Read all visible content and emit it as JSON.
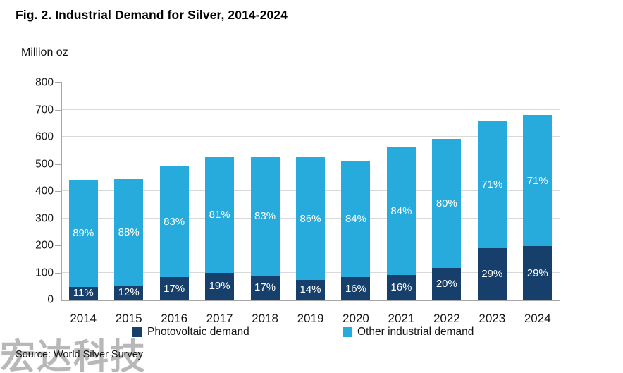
{
  "title": "Fig. 2. Industrial Demand for Silver, 2014-2024",
  "y_axis_label": "Million oz",
  "source": "Source: World Silver Survey",
  "watermark": "宏达科技",
  "colors": {
    "photovoltaic": "#16406B",
    "other_industrial": "#27ABDC",
    "gridline": "#d9d9d9",
    "axis": "#a6a6a6",
    "label_text": "#ffffff"
  },
  "legend": [
    {
      "label": "Photovoltaic demand",
      "color": "#16406B"
    },
    {
      "label": "Other industrial demand",
      "color": "#27ABDC"
    }
  ],
  "chart_data": {
    "type": "bar",
    "subtype": "stacked",
    "title": "Fig. 2. Industrial Demand for Silver, 2014-2024",
    "ylabel": "Million oz",
    "xlabel": "",
    "categories": [
      "2014",
      "2015",
      "2016",
      "2017",
      "2018",
      "2019",
      "2020",
      "2021",
      "2022",
      "2023",
      "2024"
    ],
    "series": [
      {
        "name": "Photovoltaic demand",
        "color": "#16406B",
        "values": [
          48,
          53,
          83,
          100,
          89,
          73,
          82,
          90,
          118,
          190,
          197
        ],
        "pct_labels": [
          "11%",
          "12%",
          "17%",
          "19%",
          "17%",
          "14%",
          "16%",
          "16%",
          "20%",
          "29%",
          "29%"
        ]
      },
      {
        "name": "Other industrial demand",
        "color": "#27ABDC",
        "values": [
          393,
          390,
          407,
          428,
          437,
          451,
          429,
          472,
          474,
          467,
          483
        ],
        "pct_labels": [
          "89%",
          "88%",
          "83%",
          "81%",
          "83%",
          "86%",
          "84%",
          "84%",
          "80%",
          "71%",
          "71%"
        ]
      }
    ],
    "totals": [
      441,
      443,
      490,
      528,
      526,
      524,
      511,
      562,
      592,
      657,
      680
    ],
    "ylim": [
      0,
      800
    ],
    "yticks": [
      0,
      100,
      200,
      300,
      400,
      500,
      600,
      700,
      800
    ],
    "grid": true,
    "legend_position": "bottom"
  }
}
